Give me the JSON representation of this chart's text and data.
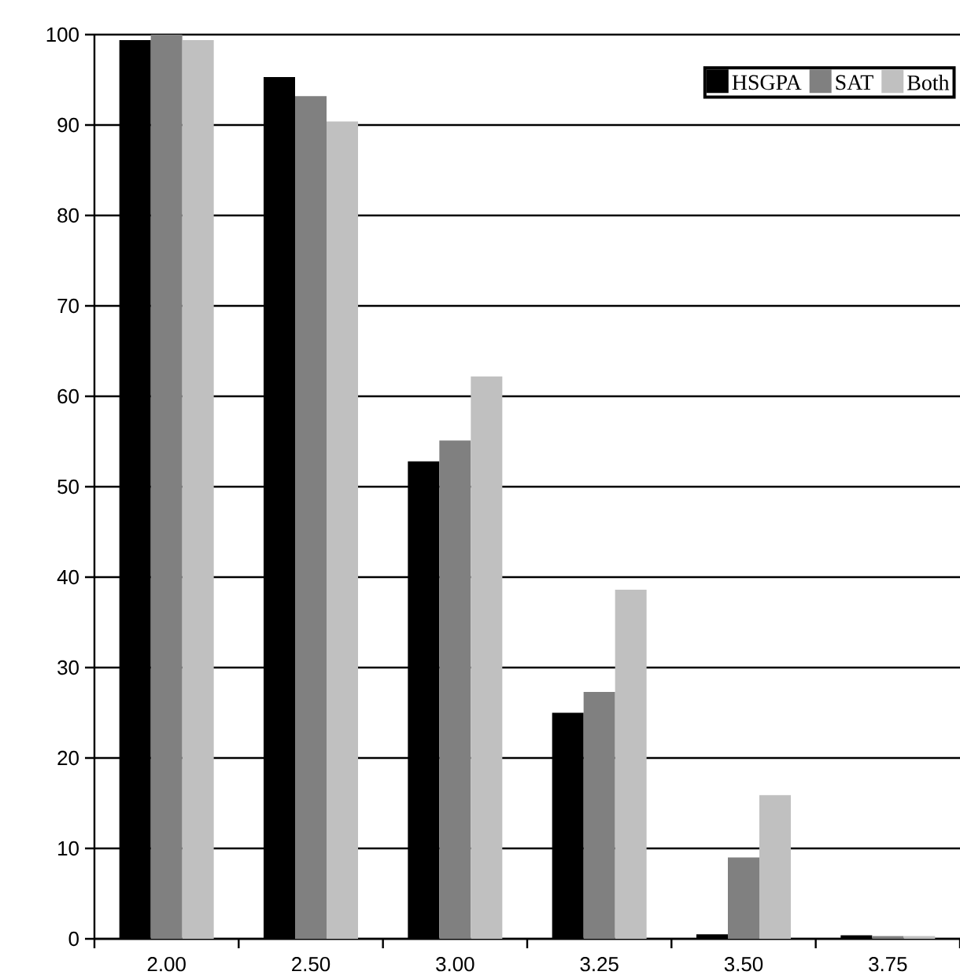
{
  "chart_data": {
    "type": "bar",
    "categories": [
      "2.00",
      "2.50",
      "3.00",
      "3.25",
      "3.50",
      "3.75"
    ],
    "series": [
      {
        "name": "HSGPA",
        "color": "#000000",
        "values": [
          99.4,
          95.3,
          52.8,
          25.0,
          0.5,
          0.4
        ]
      },
      {
        "name": "SAT",
        "color": "#808080",
        "values": [
          100,
          93.2,
          55.1,
          27.3,
          9.0,
          0.3
        ]
      },
      {
        "name": "Both",
        "color": "#c0c0c0",
        "values": [
          99.4,
          90.4,
          62.2,
          38.6,
          15.9,
          0.3
        ]
      }
    ],
    "ylim": [
      0,
      100
    ],
    "yticks": [
      0,
      10,
      20,
      30,
      40,
      50,
      60,
      70,
      80,
      90,
      100
    ],
    "grid": "y",
    "legend": "top right"
  }
}
